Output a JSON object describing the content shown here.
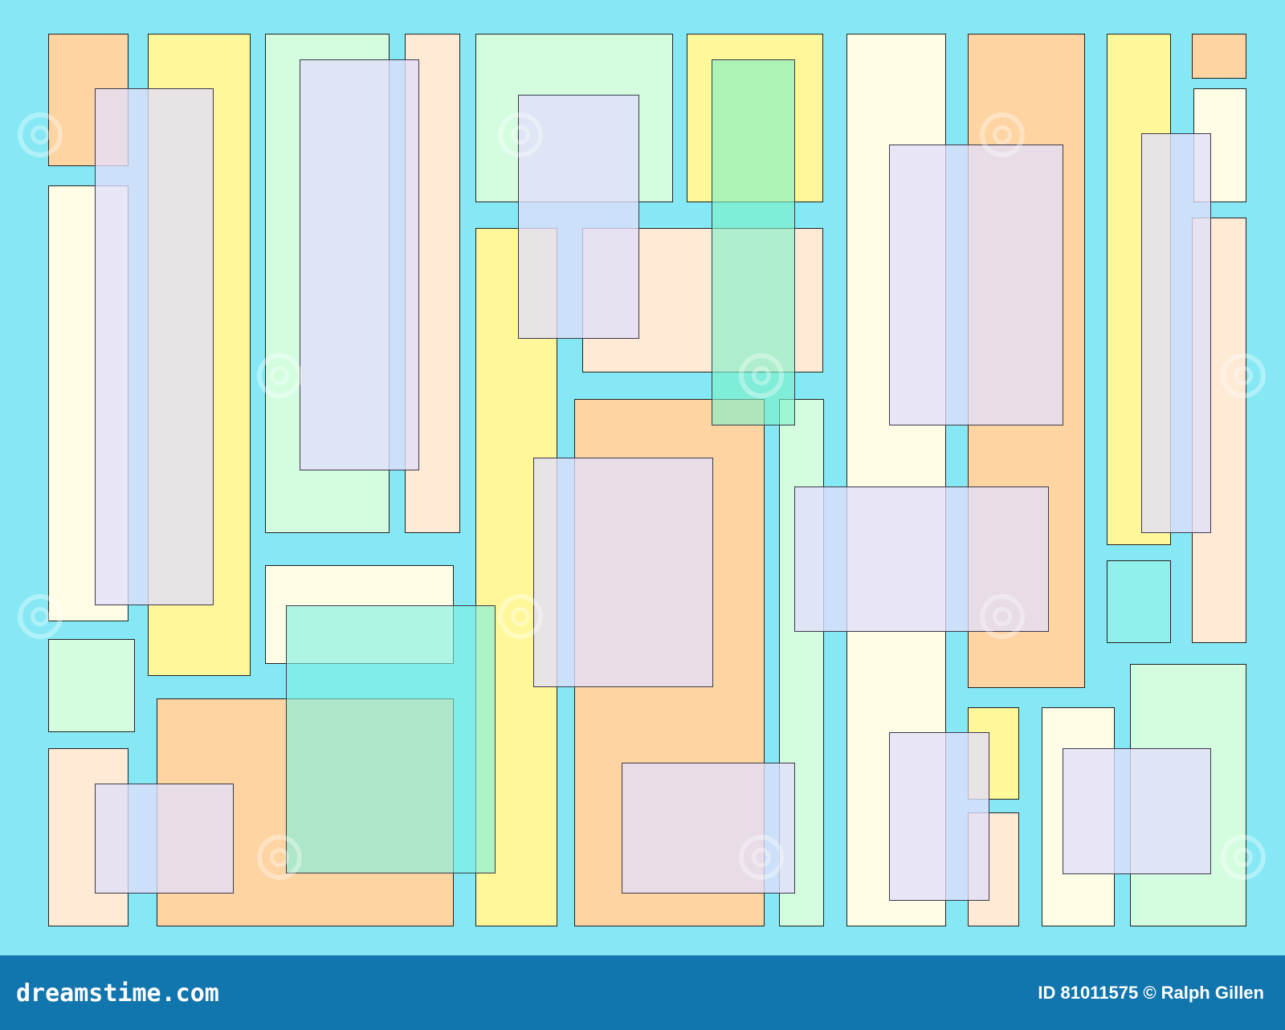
{
  "colors": {
    "background": "#86e8f4",
    "peach": "#ffd4a3",
    "yellow": "#fff79a",
    "cream": "#fffde6",
    "mint": "#d4fde0",
    "light_peach": "#ffead6",
    "aqua": "#8ff0ec",
    "teal_green": "#a8f2d8",
    "overlay_lavender": "rgba(225,222,250,0.78)",
    "overlay_teal": "rgba(125,240,225,0.6)",
    "footer": "#1175ae"
  },
  "footer": {
    "site": "dreamstime.com",
    "credit": "ID 81011575 © Ralph Gillen"
  }
}
